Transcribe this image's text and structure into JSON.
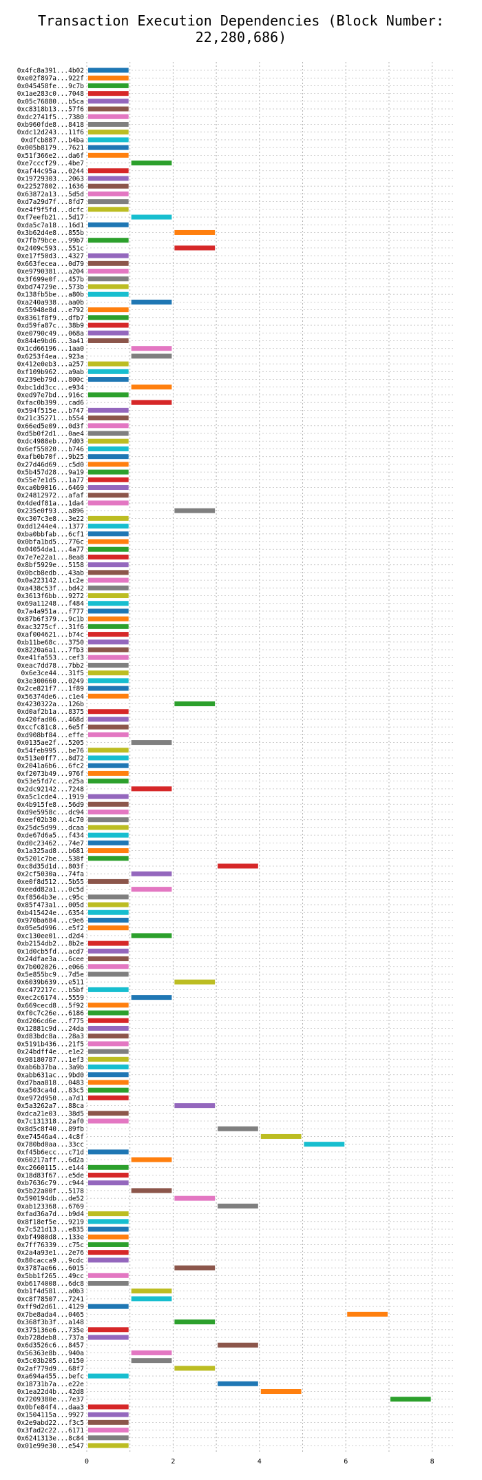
{
  "chart_data": {
    "type": "bar",
    "orientation": "horizontal",
    "title": "Transaction Execution Dependencies (Block Number: 22,280,686)",
    "xlabel": "",
    "ylabel": "",
    "xlim": [
      0,
      8.5
    ],
    "xticks": [
      "0",
      "2",
      "4",
      "6",
      "8"
    ],
    "grid": true,
    "colors": [
      "#1f77b4",
      "#ff7f0e",
      "#2ca02c",
      "#d62728",
      "#9467bd",
      "#8c564b",
      "#e377c2",
      "#7f7f7f",
      "#bcbd22",
      "#17becf"
    ],
    "rows": [
      {
        "label": "0x4fc8a391...4b02",
        "start": 0,
        "end": 1
      },
      {
        "label": "0xe02f897a...922f",
        "start": 0,
        "end": 1
      },
      {
        "label": "0x045458fe...9c7b",
        "start": 0,
        "end": 1
      },
      {
        "label": "0x1ae283c0...7048",
        "start": 0,
        "end": 1
      },
      {
        "label": "0x05c76880...b5ca",
        "start": 0,
        "end": 1
      },
      {
        "label": "0xc8318b13...57f6",
        "start": 0,
        "end": 1
      },
      {
        "label": "0xdc2741f5...7380",
        "start": 0,
        "end": 1
      },
      {
        "label": "0xb960fde8...8418",
        "start": 0,
        "end": 1
      },
      {
        "label": "0xdc12d243...11f6",
        "start": 0,
        "end": 1
      },
      {
        "label": "0xdfcb887...b4ba",
        "start": 0,
        "end": 1
      },
      {
        "label": "0x005b8179...7621",
        "start": 0,
        "end": 1
      },
      {
        "label": "0x51f366e2...da6f",
        "start": 0,
        "end": 1
      },
      {
        "label": "0xe7cccf29...4be7",
        "start": 1,
        "end": 2
      },
      {
        "label": "0xaf44c95a...0244",
        "start": 0,
        "end": 1
      },
      {
        "label": "0x19729303...2063",
        "start": 0,
        "end": 1
      },
      {
        "label": "0x22527802...1636",
        "start": 0,
        "end": 1
      },
      {
        "label": "0x63872a13...5d5d",
        "start": 0,
        "end": 1
      },
      {
        "label": "0xd7a29d7f...8fd7",
        "start": 0,
        "end": 1
      },
      {
        "label": "0xe4f9f5fd...dcfc",
        "start": 0,
        "end": 1
      },
      {
        "label": "0xf7eefb21...5d17",
        "start": 1,
        "end": 2
      },
      {
        "label": "0xda5c7a18...16d1",
        "start": 0,
        "end": 1
      },
      {
        "label": "0x3b62d4e8...855b",
        "start": 2,
        "end": 3
      },
      {
        "label": "0x7fb79bce...99b7",
        "start": 0,
        "end": 1
      },
      {
        "label": "0x2409c593...551c",
        "start": 2,
        "end": 3
      },
      {
        "label": "0xe17f50d3...4327",
        "start": 0,
        "end": 1
      },
      {
        "label": "0x663fecea...0d79",
        "start": 0,
        "end": 1
      },
      {
        "label": "0xe9790381...a204",
        "start": 0,
        "end": 1
      },
      {
        "label": "0x3f699e0f...457b",
        "start": 0,
        "end": 1
      },
      {
        "label": "0xbd74729e...573b",
        "start": 0,
        "end": 1
      },
      {
        "label": "0x138fb5be...a80b",
        "start": 0,
        "end": 1
      },
      {
        "label": "0xa240a938...aa0b",
        "start": 1,
        "end": 2
      },
      {
        "label": "0x55948e8d...e792",
        "start": 0,
        "end": 1
      },
      {
        "label": "0x8361f8f9...dfb7",
        "start": 0,
        "end": 1
      },
      {
        "label": "0xd59fa87c...38b9",
        "start": 0,
        "end": 1
      },
      {
        "label": "0xe0790c49...068a",
        "start": 0,
        "end": 1
      },
      {
        "label": "0x844e9bd6...3a41",
        "start": 0,
        "end": 1
      },
      {
        "label": "0x1cd66196...1aa0",
        "start": 1,
        "end": 2
      },
      {
        "label": "0x6253f4ea...923a",
        "start": 1,
        "end": 2
      },
      {
        "label": "0x412e0eb3...a257",
        "start": 0,
        "end": 1
      },
      {
        "label": "0xf109b962...a9ab",
        "start": 0,
        "end": 1
      },
      {
        "label": "0x239eb79d...800c",
        "start": 0,
        "end": 1
      },
      {
        "label": "0xbc1dd3cc...e934",
        "start": 1,
        "end": 2
      },
      {
        "label": "0xed97e7bd...916c",
        "start": 0,
        "end": 1
      },
      {
        "label": "0xfac0b399...cad6",
        "start": 1,
        "end": 2
      },
      {
        "label": "0x594f515e...b747",
        "start": 0,
        "end": 1
      },
      {
        "label": "0x21c35271...b554",
        "start": 0,
        "end": 1
      },
      {
        "label": "0x66ed5e09...0d3f",
        "start": 0,
        "end": 1
      },
      {
        "label": "0xd5b0f2d1...0ae4",
        "start": 0,
        "end": 1
      },
      {
        "label": "0xdc4988eb...7d03",
        "start": 0,
        "end": 1
      },
      {
        "label": "0x6ef55020...b746",
        "start": 0,
        "end": 1
      },
      {
        "label": "0xafb0b70f...9b25",
        "start": 0,
        "end": 1
      },
      {
        "label": "0x27d46d69...c5d0",
        "start": 0,
        "end": 1
      },
      {
        "label": "0x5b457d28...9a19",
        "start": 0,
        "end": 1
      },
      {
        "label": "0x55e7e1d5...1a77",
        "start": 0,
        "end": 1
      },
      {
        "label": "0xca0b9016...6469",
        "start": 0,
        "end": 1
      },
      {
        "label": "0x24812972...afaf",
        "start": 0,
        "end": 1
      },
      {
        "label": "0x4dedf81a...1da4",
        "start": 0,
        "end": 1
      },
      {
        "label": "0x235e0f93...a896",
        "start": 2,
        "end": 3
      },
      {
        "label": "0xc307c3e8...3e22",
        "start": 0,
        "end": 1
      },
      {
        "label": "0xdd1244e4...1377",
        "start": 0,
        "end": 1
      },
      {
        "label": "0xba0bbfab...6cf1",
        "start": 0,
        "end": 1
      },
      {
        "label": "0x0bfa1bd5...776c",
        "start": 0,
        "end": 1
      },
      {
        "label": "0x04054da1...4a77",
        "start": 0,
        "end": 1
      },
      {
        "label": "0x7e7e22a1...8ea8",
        "start": 0,
        "end": 1
      },
      {
        "label": "0x8bf5929e...5158",
        "start": 0,
        "end": 1
      },
      {
        "label": "0x0bcb8edb...43ab",
        "start": 0,
        "end": 1
      },
      {
        "label": "0x0a223142...1c2e",
        "start": 0,
        "end": 1
      },
      {
        "label": "0xa438c53f...bd42",
        "start": 0,
        "end": 1
      },
      {
        "label": "0x3613f6bb...9272",
        "start": 0,
        "end": 1
      },
      {
        "label": "0x69a11248...f484",
        "start": 0,
        "end": 1
      },
      {
        "label": "0x7a4a951a...f777",
        "start": 0,
        "end": 1
      },
      {
        "label": "0x87b6f379...9c1b",
        "start": 0,
        "end": 1
      },
      {
        "label": "0xac3275cf...31f6",
        "start": 0,
        "end": 1
      },
      {
        "label": "0xaf004621...b74c",
        "start": 0,
        "end": 1
      },
      {
        "label": "0xb11be68c...3750",
        "start": 0,
        "end": 1
      },
      {
        "label": "0x8220a6a1...7fb3",
        "start": 0,
        "end": 1
      },
      {
        "label": "0xe41fa553...cef3",
        "start": 0,
        "end": 1
      },
      {
        "label": "0xeac7dd78...7bb2",
        "start": 0,
        "end": 1
      },
      {
        "label": "0x6e3ce44...31f5",
        "start": 0,
        "end": 1
      },
      {
        "label": "0x3e300660...0249",
        "start": 0,
        "end": 1
      },
      {
        "label": "0x2ce821f7...1f89",
        "start": 0,
        "end": 1
      },
      {
        "label": "0x56374de6...c1e4",
        "start": 0,
        "end": 1
      },
      {
        "label": "0x4230322a...126b",
        "start": 2,
        "end": 3
      },
      {
        "label": "0xd0af2b1a...8375",
        "start": 0,
        "end": 1
      },
      {
        "label": "0x420fad06...468d",
        "start": 0,
        "end": 1
      },
      {
        "label": "0xccfc81c8...6e5f",
        "start": 0,
        "end": 1
      },
      {
        "label": "0xd908bf84...effe",
        "start": 0,
        "end": 1
      },
      {
        "label": "0x0135ae2f...5205",
        "start": 1,
        "end": 2
      },
      {
        "label": "0x54feb995...be76",
        "start": 0,
        "end": 1
      },
      {
        "label": "0x513e0ff7...8d72",
        "start": 0,
        "end": 1
      },
      {
        "label": "0x2041a6b6...6fc2",
        "start": 0,
        "end": 1
      },
      {
        "label": "0xf2073b49...976f",
        "start": 0,
        "end": 1
      },
      {
        "label": "0x53e5fd7c...e25a",
        "start": 0,
        "end": 1
      },
      {
        "label": "0x2dc92142...7248",
        "start": 1,
        "end": 2
      },
      {
        "label": "0xa5c1cde4...1919",
        "start": 0,
        "end": 1
      },
      {
        "label": "0x4b915fe8...56d9",
        "start": 0,
        "end": 1
      },
      {
        "label": "0xd9e5958c...dc94",
        "start": 0,
        "end": 1
      },
      {
        "label": "0xeef02b30...4c70",
        "start": 0,
        "end": 1
      },
      {
        "label": "0x25dc5d99...dcaa",
        "start": 0,
        "end": 1
      },
      {
        "label": "0xde67d6a5...f434",
        "start": 0,
        "end": 1
      },
      {
        "label": "0xd0c23462...74e7",
        "start": 0,
        "end": 1
      },
      {
        "label": "0x1a325ad8...b681",
        "start": 0,
        "end": 1
      },
      {
        "label": "0x5201c7be...538f",
        "start": 0,
        "end": 1
      },
      {
        "label": "0xc8d35d1d...803f",
        "start": 3,
        "end": 4
      },
      {
        "label": "0x2cf5030a...74fa",
        "start": 1,
        "end": 2
      },
      {
        "label": "0xe0f8d512...5b55",
        "start": 0,
        "end": 1
      },
      {
        "label": "0xeedd82a1...0c5d",
        "start": 1,
        "end": 2
      },
      {
        "label": "0xf8564b3e...c95c",
        "start": 0,
        "end": 1
      },
      {
        "label": "0x85f473a1...005d",
        "start": 0,
        "end": 1
      },
      {
        "label": "0xb415424e...6354",
        "start": 0,
        "end": 1
      },
      {
        "label": "0x970ba684...c9e6",
        "start": 0,
        "end": 1
      },
      {
        "label": "0x05e5d996...e5f2",
        "start": 0,
        "end": 1
      },
      {
        "label": "0xc130ee01...d2d4",
        "start": 1,
        "end": 2
      },
      {
        "label": "0xb2154db2...8b2e",
        "start": 0,
        "end": 1
      },
      {
        "label": "0x1d0cb5fd...acd7",
        "start": 0,
        "end": 1
      },
      {
        "label": "0x24dfae3a...6cee",
        "start": 0,
        "end": 1
      },
      {
        "label": "0x7b002026...e066",
        "start": 0,
        "end": 1
      },
      {
        "label": "0x5e855bc9...7d5e",
        "start": 0,
        "end": 1
      },
      {
        "label": "0x6039b639...e511",
        "start": 2,
        "end": 3
      },
      {
        "label": "0xc472217c...b5bf",
        "start": 0,
        "end": 1
      },
      {
        "label": "0xec2c6174...5559",
        "start": 1,
        "end": 2
      },
      {
        "label": "0x669cecd8...5f92",
        "start": 0,
        "end": 1
      },
      {
        "label": "0xf0c7c26e...6186",
        "start": 0,
        "end": 1
      },
      {
        "label": "0xd206cd6e...f775",
        "start": 0,
        "end": 1
      },
      {
        "label": "0x12881c9d...24da",
        "start": 0,
        "end": 1
      },
      {
        "label": "0xd83bdc8a...28a3",
        "start": 0,
        "end": 1
      },
      {
        "label": "0x5191b436...21f5",
        "start": 0,
        "end": 1
      },
      {
        "label": "0x24bdff4e...e1e2",
        "start": 0,
        "end": 1
      },
      {
        "label": "0x98180787...1ef3",
        "start": 0,
        "end": 1
      },
      {
        "label": "0xab6b37ba...3a9b",
        "start": 0,
        "end": 1
      },
      {
        "label": "0xabb631ac...9bd0",
        "start": 0,
        "end": 1
      },
      {
        "label": "0xd7baa818...0483",
        "start": 0,
        "end": 1
      },
      {
        "label": "0xa503ca4d...83c5",
        "start": 0,
        "end": 1
      },
      {
        "label": "0xe972d950...a7d1",
        "start": 0,
        "end": 1
      },
      {
        "label": "0x5a3262a7...88ca",
        "start": 2,
        "end": 3
      },
      {
        "label": "0xdca21e03...38d5",
        "start": 0,
        "end": 1
      },
      {
        "label": "0x7c131318...2af0",
        "start": 0,
        "end": 1
      },
      {
        "label": "0x8d5c8f40...89fb",
        "start": 3,
        "end": 4
      },
      {
        "label": "0xe74546a4...4c8f",
        "start": 4,
        "end": 5
      },
      {
        "label": "0x780bd0aa...33cc",
        "start": 5,
        "end": 6
      },
      {
        "label": "0xf45b6ecc...c71d",
        "start": 0,
        "end": 1
      },
      {
        "label": "0x60217aff...6d2a",
        "start": 1,
        "end": 2
      },
      {
        "label": "0xc2660115...e144",
        "start": 0,
        "end": 1
      },
      {
        "label": "0x18d83f67...e5de",
        "start": 0,
        "end": 1
      },
      {
        "label": "0xb7636c79...c944",
        "start": 0,
        "end": 1
      },
      {
        "label": "0x5b22a00f...5178",
        "start": 1,
        "end": 2
      },
      {
        "label": "0x590194db...de52",
        "start": 2,
        "end": 3
      },
      {
        "label": "0xab123368...6769",
        "start": 3,
        "end": 4
      },
      {
        "label": "0xfad36a7d...b9d4",
        "start": 0,
        "end": 1
      },
      {
        "label": "0x8f18ef5e...9219",
        "start": 0,
        "end": 1
      },
      {
        "label": "0x7c521d13...e835",
        "start": 0,
        "end": 1
      },
      {
        "label": "0xbf4980d8...133e",
        "start": 0,
        "end": 1
      },
      {
        "label": "0x7ff76339...c75c",
        "start": 0,
        "end": 1
      },
      {
        "label": "0x2a4a93e1...2e76",
        "start": 0,
        "end": 1
      },
      {
        "label": "0x80cacca9...9cdc",
        "start": 0,
        "end": 1
      },
      {
        "label": "0x3787ae66...6015",
        "start": 2,
        "end": 3
      },
      {
        "label": "0x5bb1f265...49cc",
        "start": 0,
        "end": 1
      },
      {
        "label": "0xb6174008...6dc8",
        "start": 0,
        "end": 1
      },
      {
        "label": "0xb1f4d581...a0b3",
        "start": 1,
        "end": 2
      },
      {
        "label": "0xc8f78507...7241",
        "start": 1,
        "end": 2
      },
      {
        "label": "0xff9d2d61...4129",
        "start": 0,
        "end": 1
      },
      {
        "label": "0x7be8ada4...0465",
        "start": 6,
        "end": 7
      },
      {
        "label": "0x368f3b3f...a148",
        "start": 2,
        "end": 3
      },
      {
        "label": "0x375136e6...735e",
        "start": 0,
        "end": 1
      },
      {
        "label": "0xb728deb8...737a",
        "start": 0,
        "end": 1
      },
      {
        "label": "0x6d3526c6...8457",
        "start": 3,
        "end": 4
      },
      {
        "label": "0x56363e8b...940a",
        "start": 1,
        "end": 2
      },
      {
        "label": "0x5c03b205...0150",
        "start": 1,
        "end": 2
      },
      {
        "label": "0x2af779d9...68f7",
        "start": 2,
        "end": 3
      },
      {
        "label": "0xa694a455...befc",
        "start": 0,
        "end": 1
      },
      {
        "label": "0x18731b7a...e22e",
        "start": 3,
        "end": 4
      },
      {
        "label": "0x1ea22d4b...42d8",
        "start": 4,
        "end": 5
      },
      {
        "label": "0x7209380e...7e37",
        "start": 7,
        "end": 8
      },
      {
        "label": "0x0bfe84f4...daa3",
        "start": 0,
        "end": 1
      },
      {
        "label": "0x1504115a...9927",
        "start": 0,
        "end": 1
      },
      {
        "label": "0x2e9abd22...f3c5",
        "start": 0,
        "end": 1
      },
      {
        "label": "0x3fad2c22...6171",
        "start": 0,
        "end": 1
      },
      {
        "label": "0x6241313e...8c84",
        "start": 0,
        "end": 1
      },
      {
        "label": "0x01e99e30...e547",
        "start": 0,
        "end": 1
      }
    ]
  }
}
